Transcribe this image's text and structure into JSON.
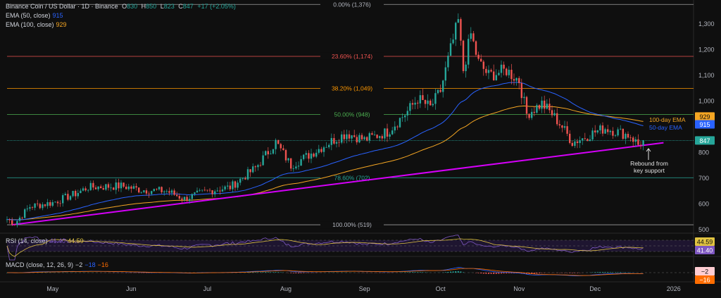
{
  "header": {
    "symbol": "Binance Coin / US Dollar · 1D · Binance",
    "o_label": "O",
    "o": "830",
    "h_label": "H",
    "h": "850",
    "l_label": "L",
    "l": "823",
    "c_label": "C",
    "c": "847",
    "change": "+17 (+2.05%)"
  },
  "ema50": {
    "label": "EMA (50, close)",
    "value": "915",
    "color": "#2962ff"
  },
  "ema100": {
    "label": "EMA (100, close)",
    "value": "929",
    "color": "#f5a623"
  },
  "rsi": {
    "label": "RSI (14, close)",
    "value1": "41.40",
    "value2": "44.59",
    "color1": "#7e57c2",
    "color2": "#e0c341"
  },
  "macd": {
    "label": "MACD (close, 12, 26, 9)",
    "v1": "−2",
    "v2": "−18",
    "v3": "−16"
  },
  "annotations": {
    "ema100": "100-day EMA",
    "ema50": "50-day EMA",
    "rebound1": "Rebound from",
    "rebound2": "key support"
  },
  "colors": {
    "up": "#26a69a",
    "down": "#ef5350",
    "trendline": "#d500f9",
    "background": "#0f0f0f"
  },
  "chart_data": {
    "type": "candlestick",
    "ylim": [
      490,
      1385
    ],
    "y_ticks": [
      500,
      600,
      700,
      800,
      900,
      1000,
      1100,
      1200,
      1300
    ],
    "y_tick_labels": [
      "500",
      "600",
      "700",
      "800",
      "",
      "1,000",
      "1,100",
      "1,200",
      "1,300"
    ],
    "x_range": [
      "2025-04-13",
      "2026-01-02"
    ],
    "x_ticks": [
      {
        "date": "2025-05-01",
        "label": "May"
      },
      {
        "date": "2025-06-01",
        "label": "Jun"
      },
      {
        "date": "2025-07-01",
        "label": "Jul"
      },
      {
        "date": "2025-08-01",
        "label": "Aug"
      },
      {
        "date": "2025-09-01",
        "label": "Sep"
      },
      {
        "date": "2025-10-01",
        "label": "Oct"
      },
      {
        "date": "2025-11-01",
        "label": "Nov"
      },
      {
        "date": "2025-12-01",
        "label": "Dec"
      },
      {
        "date": "2026-01-01",
        "label": "2026"
      }
    ],
    "fib_levels": [
      {
        "label": "0.00% (1,376)",
        "price": 1376,
        "color": "#9e9e9e"
      },
      {
        "label": "23.60% (1,174)",
        "price": 1174,
        "color": "#ef5350"
      },
      {
        "label": "38.20% (1,049)",
        "price": 1049,
        "color": "#ff9800"
      },
      {
        "label": "50.00% (948)",
        "price": 948,
        "color": "#4caf50"
      },
      {
        "label": "78.60% (702)",
        "price": 702,
        "color": "#26a69a"
      },
      {
        "label": "100.00% (519)",
        "price": 519,
        "color": "#9e9e9e"
      }
    ],
    "price_line": 847,
    "trendline": [
      {
        "date": "2025-04-15",
        "price": 519
      },
      {
        "date": "2025-12-28",
        "price": 838
      }
    ],
    "close_path": [
      [
        "2025-04-13",
        540
      ],
      [
        "2025-04-16",
        525
      ],
      [
        "2025-04-22",
        590
      ],
      [
        "2025-05-01",
        605
      ],
      [
        "2025-05-10",
        640
      ],
      [
        "2025-05-15",
        665
      ],
      [
        "2025-05-28",
        670
      ],
      [
        "2025-06-05",
        655
      ],
      [
        "2025-06-15",
        650
      ],
      [
        "2025-06-22",
        620
      ],
      [
        "2025-07-01",
        650
      ],
      [
        "2025-07-10",
        665
      ],
      [
        "2025-07-20",
        740
      ],
      [
        "2025-07-28",
        840
      ],
      [
        "2025-08-03",
        750
      ],
      [
        "2025-08-10",
        790
      ],
      [
        "2025-08-20",
        850
      ],
      [
        "2025-08-25",
        875
      ],
      [
        "2025-09-01",
        850
      ],
      [
        "2025-09-10",
        880
      ],
      [
        "2025-09-18",
        960
      ],
      [
        "2025-09-22",
        1010
      ],
      [
        "2025-09-27",
        975
      ],
      [
        "2025-10-01",
        1040
      ],
      [
        "2025-10-05",
        1200
      ],
      [
        "2025-10-08",
        1310
      ],
      [
        "2025-10-10",
        1120
      ],
      [
        "2025-10-13",
        1260
      ],
      [
        "2025-10-16",
        1150
      ],
      [
        "2025-10-20",
        1100
      ],
      [
        "2025-10-27",
        1120
      ],
      [
        "2025-11-01",
        1080
      ],
      [
        "2025-11-04",
        950
      ],
      [
        "2025-11-10",
        990
      ],
      [
        "2025-11-14",
        950
      ],
      [
        "2025-11-18",
        900
      ],
      [
        "2025-11-22",
        840
      ],
      [
        "2025-11-26",
        855
      ],
      [
        "2025-12-01",
        880
      ],
      [
        "2025-12-05",
        895
      ],
      [
        "2025-12-10",
        880
      ],
      [
        "2025-12-15",
        865
      ],
      [
        "2025-12-18",
        830
      ],
      [
        "2025-12-20",
        847
      ]
    ],
    "rsi_levels": [
      70,
      50,
      30
    ],
    "last": {
      "close": 847,
      "ema50": 915,
      "ema100": 929,
      "rsi": 41.4,
      "rsi_ma": 44.59,
      "macd": -2,
      "signal": -16,
      "hist": -18
    }
  },
  "price_tags": {
    "ema100": "929",
    "ema50": "915",
    "close": "847",
    "rsi_ma": "44.59",
    "rsi": "41.40",
    "macd": "−2",
    "signal": "−16"
  }
}
